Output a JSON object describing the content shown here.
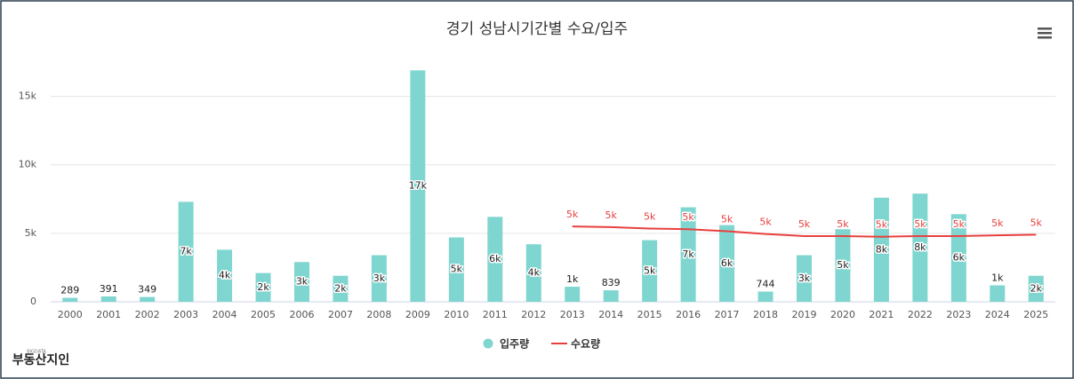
{
  "chart_data": {
    "type": "bar",
    "title": "경기 성남시기간별 수요/입주",
    "categories": [
      "2000",
      "2001",
      "2002",
      "2003",
      "2004",
      "2005",
      "2006",
      "2007",
      "2008",
      "2009",
      "2010",
      "2011",
      "2012",
      "2013",
      "2014",
      "2015",
      "2016",
      "2017",
      "2018",
      "2019",
      "2020",
      "2021",
      "2022",
      "2023",
      "2024",
      "2025"
    ],
    "series": [
      {
        "name": "입주량",
        "type": "bar",
        "color": "#7fd6d0",
        "values": [
          289,
          391,
          349,
          7300,
          3800,
          2100,
          2900,
          1900,
          3400,
          16900,
          4700,
          6200,
          4200,
          1100,
          839,
          4500,
          6900,
          5600,
          744,
          3400,
          5300,
          7600,
          7900,
          6400,
          1200,
          1900
        ],
        "value_labels": [
          "289",
          "391",
          "349",
          "7k",
          "4k",
          "2k",
          "3k",
          "2k",
          "3k",
          "17k",
          "5k",
          "6k",
          "4k",
          "1k",
          "839",
          "5k",
          "7k",
          "6k",
          "744",
          "3k",
          "5k",
          "8k",
          "8k",
          "6k",
          "1k",
          "2k"
        ]
      },
      {
        "name": "수요량",
        "type": "line",
        "color": "#e8403f",
        "values": [
          null,
          null,
          null,
          null,
          null,
          null,
          null,
          null,
          null,
          null,
          null,
          null,
          null,
          5500,
          5450,
          5350,
          5300,
          5150,
          4950,
          4800,
          4800,
          4750,
          4800,
          4800,
          4850,
          4900
        ],
        "value_labels": [
          null,
          null,
          null,
          null,
          null,
          null,
          null,
          null,
          null,
          null,
          null,
          null,
          null,
          "5k",
          "5k",
          "5k",
          "5k",
          "5k",
          "5k",
          "5k",
          "5k",
          "5k",
          "5k",
          "5k",
          "5k",
          "5k"
        ]
      }
    ],
    "ylim": [
      0,
      17500
    ],
    "yticks": [
      0,
      {
        "value": 5000,
        "label": "5k"
      },
      {
        "value": 10000,
        "label": "10k"
      },
      {
        "value": 15000,
        "label": "15k"
      }
    ],
    "grid": true,
    "legend": "bottom"
  },
  "logo": {
    "small": "BIGDATA",
    "text": "부동산지인"
  }
}
